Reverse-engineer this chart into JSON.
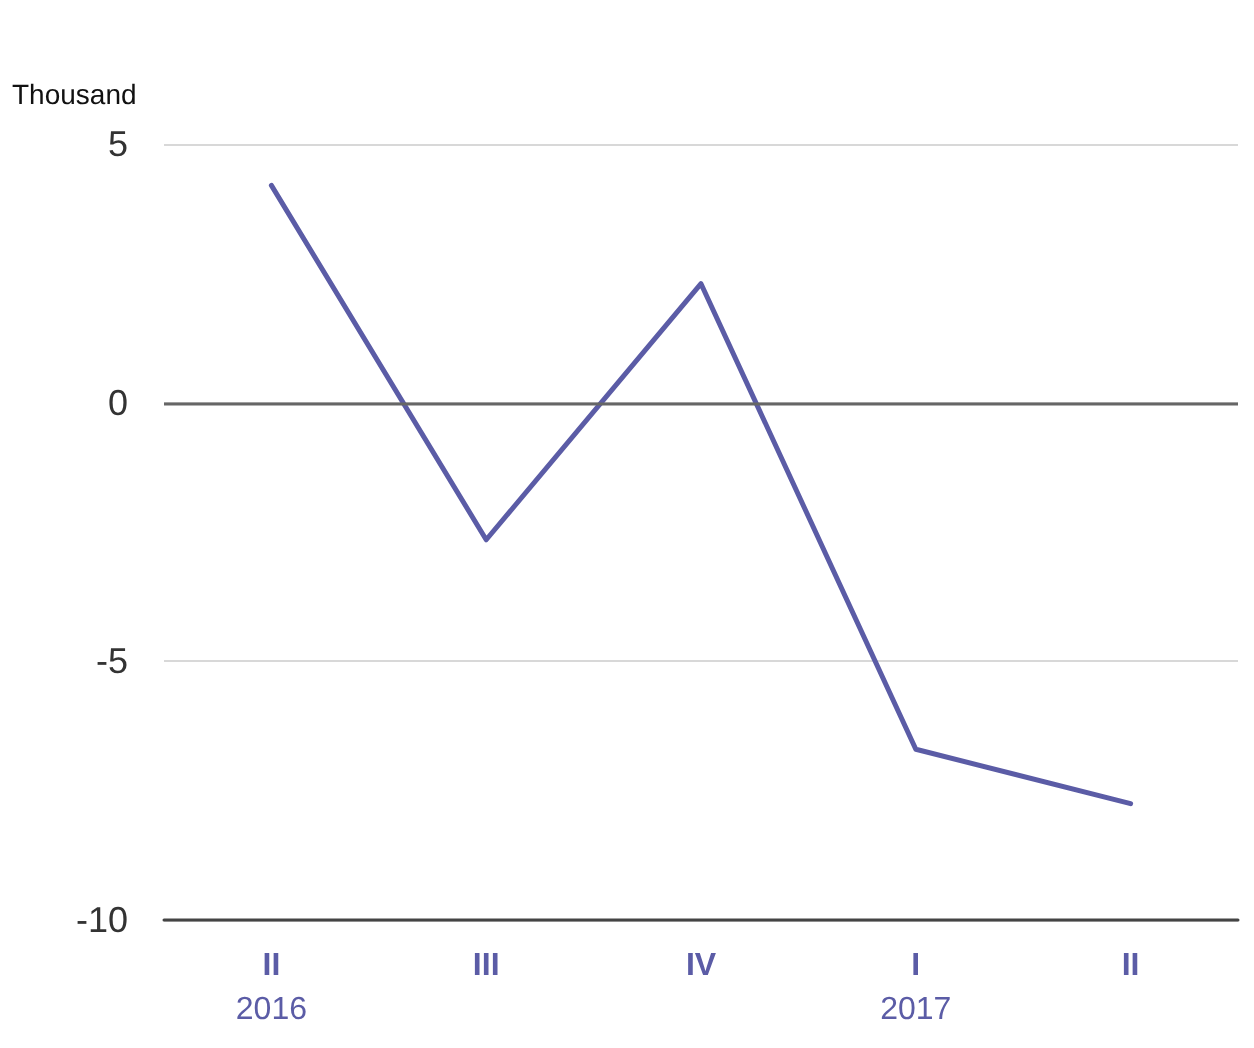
{
  "chart_data": {
    "type": "line",
    "ylabel": "Thousand",
    "categories": [
      "II\n2016",
      "III",
      "IV",
      "I\n2017",
      "II"
    ],
    "series": [
      {
        "color": "#5b5ca6",
        "values": [
          4.2,
          -2.65,
          2.3,
          -6.7,
          -7.75
        ]
      }
    ],
    "ylim": [
      -10,
      5
    ],
    "yticks": [
      -10,
      -5,
      0,
      5
    ],
    "grid": "y",
    "marker": "none",
    "line_style": "solid",
    "ref_lines": [
      {
        "axis": "y",
        "value": 0,
        "color": "#666666"
      }
    ]
  }
}
